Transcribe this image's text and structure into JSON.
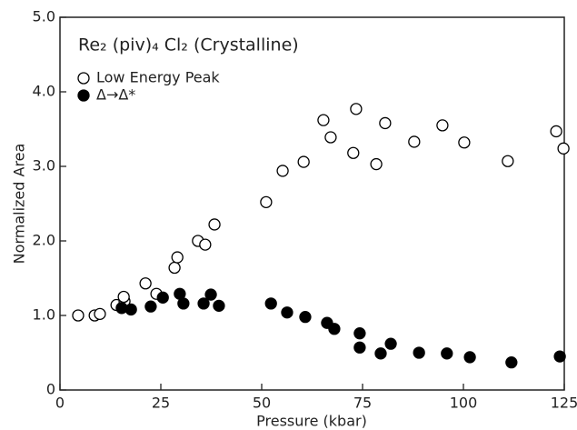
{
  "chart_data": {
    "type": "scatter",
    "title": "Re₂ (piv)₄ Cl₂ (Crystalline)",
    "x_label": "Pressure (kbar)",
    "y_label": "Normalized Area",
    "xlim": [
      0,
      125
    ],
    "xticks": [
      0,
      25,
      50,
      75,
      100,
      125
    ],
    "ylim": [
      0,
      5
    ],
    "yticks": [
      0,
      {
        "value": 1,
        "label": "1.0"
      },
      {
        "value": 2,
        "label": "2.0"
      },
      {
        "value": 3,
        "label": "3.0"
      },
      {
        "value": 4,
        "label": "4.0"
      },
      {
        "value": 5,
        "label": "5.0"
      }
    ],
    "series": [
      {
        "name": "Low Energy Peak",
        "color": "#000000",
        "marker": "open",
        "x": [
          4.5,
          8.6,
          9.9,
          14.0,
          16.0,
          15.8,
          21.2,
          23.9,
          28.4,
          29.1,
          34.2,
          36.0,
          38.3,
          51.1,
          55.2,
          60.4,
          65.3,
          67.1,
          73.4,
          72.7,
          78.4,
          80.6,
          87.8,
          94.8,
          100.2,
          111.0,
          123.0,
          124.8
        ],
        "values": [
          1.0,
          1.0,
          1.02,
          1.14,
          1.19,
          1.25,
          1.43,
          1.29,
          1.64,
          1.78,
          2.0,
          1.95,
          2.22,
          2.52,
          2.94,
          3.06,
          3.62,
          3.39,
          3.77,
          3.18,
          3.03,
          3.58,
          3.33,
          3.55,
          3.32,
          3.07,
          3.47,
          3.24
        ]
      },
      {
        "name": "Δ→Δ*",
        "color": "#000000",
        "marker": "filled",
        "x": [
          15.3,
          17.6,
          22.5,
          25.5,
          29.7,
          30.6,
          35.6,
          37.4,
          39.4,
          52.3,
          56.3,
          60.8,
          66.2,
          68.0,
          74.3,
          74.3,
          79.5,
          82.0,
          89.0,
          95.9,
          101.6,
          111.9,
          123.9
        ],
        "values": [
          1.1,
          1.08,
          1.12,
          1.24,
          1.29,
          1.16,
          1.16,
          1.28,
          1.13,
          1.16,
          1.04,
          0.98,
          0.9,
          0.82,
          0.76,
          0.57,
          0.49,
          0.62,
          0.5,
          0.49,
          0.44,
          0.37,
          0.45
        ]
      }
    ]
  }
}
